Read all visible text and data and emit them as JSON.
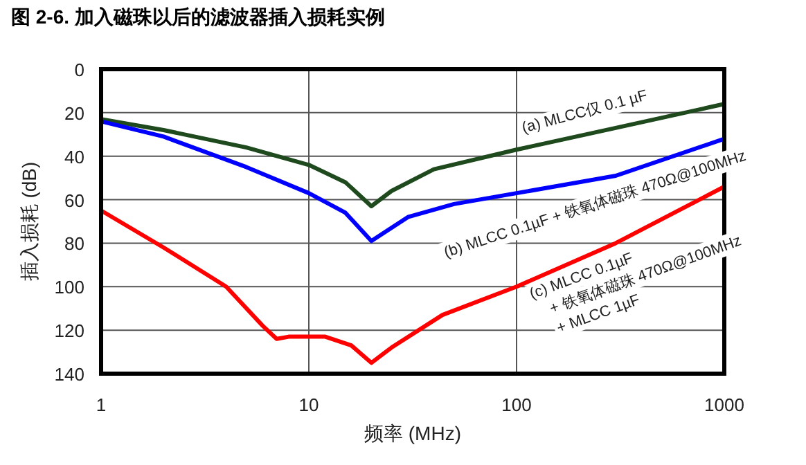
{
  "chart_data": {
    "type": "line",
    "title": "图 2-6. 加入磁珠以后的滤波器插入损耗实例",
    "xlabel": "频率 (MHz)",
    "ylabel": "插入损耗 (dB)",
    "log": "x",
    "xlim": [
      1,
      1000
    ],
    "xticks": [
      1,
      10,
      100,
      1000
    ],
    "ylim": [
      140,
      0
    ],
    "yticks": [
      0,
      20,
      40,
      60,
      80,
      100,
      120,
      140
    ],
    "grid": true,
    "legend": false,
    "series": [
      {
        "name": "(a) MLCC仅 0.1 µF",
        "color": "#1e4a1e",
        "x": [
          1,
          2,
          5,
          10,
          15,
          20,
          25,
          40,
          100,
          300,
          1000
        ],
        "values": [
          23,
          28,
          36,
          44,
          52,
          63,
          56,
          46,
          37,
          27,
          16
        ]
      },
      {
        "name": "(b) MLCC 0.1µF + 铁氧体磁珠 470Ω@100MHz",
        "color": "#0000ff",
        "x": [
          1,
          2,
          5,
          10,
          15,
          20,
          30,
          50,
          100,
          300,
          1000
        ],
        "values": [
          24,
          31,
          45,
          57,
          66,
          79,
          68,
          62,
          57,
          49,
          32
        ]
      },
      {
        "name": "(c) MLCC 0.1µF + 铁氧体磁珠 470Ω@100MHz + MLCC 1µF",
        "color": "#ff0000",
        "x": [
          1,
          2,
          4,
          6,
          7,
          8,
          12,
          16,
          20,
          25,
          44,
          100,
          300,
          1000
        ],
        "values": [
          65,
          82,
          100,
          118,
          124,
          123,
          123,
          127,
          135,
          128,
          113,
          100,
          80,
          54
        ]
      }
    ]
  }
}
